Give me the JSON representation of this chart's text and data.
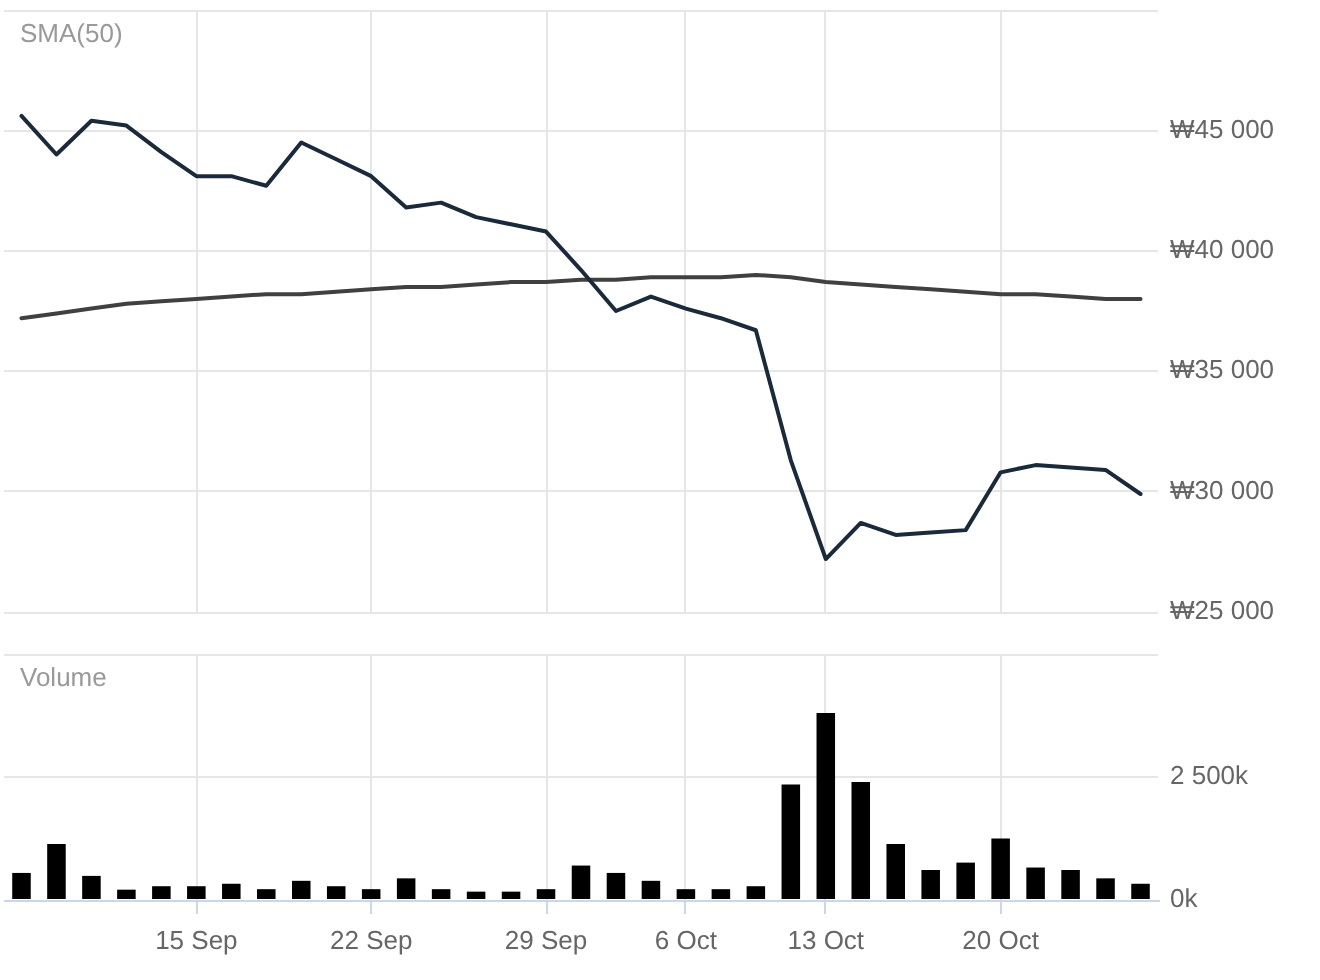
{
  "chart_data": [
    {
      "type": "line",
      "title": "SMA(50)",
      "categories": [
        null,
        null,
        null,
        null,
        null,
        null,
        null,
        null,
        null,
        null,
        null,
        null,
        null,
        null,
        null,
        null,
        null,
        null,
        null,
        null,
        null,
        null,
        null,
        null,
        null,
        null,
        null,
        null,
        null,
        null,
        null,
        null,
        null
      ],
      "series": [
        {
          "color": "#1b2a3b",
          "values": [
            45600,
            44000,
            45400,
            45200,
            44100,
            43100,
            43100,
            42700,
            44500,
            43800,
            43100,
            41800,
            42000,
            41400,
            41100,
            40800,
            39200,
            37500,
            38100,
            37600,
            37200,
            36700,
            31300,
            27200,
            28700,
            28200,
            28300,
            28400,
            30800,
            31100,
            31000,
            30900,
            29900
          ]
        },
        {
          "color": "#404040",
          "values": [
            37200,
            37400,
            37600,
            37800,
            37900,
            38000,
            38100,
            38200,
            38200,
            38300,
            38400,
            38500,
            38500,
            38600,
            38700,
            38700,
            38800,
            38800,
            38900,
            38900,
            38900,
            39000,
            38900,
            38700,
            38600,
            38500,
            38400,
            38300,
            38200,
            38200,
            38100,
            38000,
            38000
          ]
        }
      ],
      "ylim": [
        25000,
        50000
      ],
      "yticks": [
        {
          "value": 25000,
          "label": "₩25 000"
        },
        {
          "value": 30000,
          "label": "₩30 000"
        },
        {
          "value": 35000,
          "label": "₩35 000"
        },
        {
          "value": 40000,
          "label": "₩40 000"
        },
        {
          "value": 45000,
          "label": "₩45 000"
        },
        {
          "value": 50000,
          "label": null
        }
      ],
      "grid": true,
      "tick_labels": "y",
      "marker": "none"
    },
    {
      "type": "bar",
      "title": "Volume",
      "categories": [
        null,
        null,
        null,
        null,
        null,
        "15 Sep",
        null,
        null,
        null,
        null,
        "22 Sep",
        null,
        null,
        null,
        null,
        "29 Sep",
        null,
        null,
        null,
        "6 Oct",
        null,
        null,
        null,
        "13 Oct",
        null,
        null,
        null,
        null,
        "20 Oct",
        null,
        null,
        null,
        null
      ],
      "values": [
        550,
        1140,
        490,
        210,
        280,
        280,
        330,
        220,
        390,
        280,
        220,
        440,
        220,
        170,
        170,
        220,
        700,
        550,
        390,
        220,
        220,
        280,
        2350,
        3800,
        2400,
        1140,
        610,
        760,
        1250,
        660,
        610,
        440,
        330
      ],
      "color": "#000000",
      "ylim": [
        0,
        5000
      ],
      "yticks": [
        {
          "value": 0,
          "label": "0k"
        },
        {
          "value": 2500,
          "label": "2 500k"
        },
        {
          "value": 5000,
          "label": null
        }
      ],
      "grid": true
    }
  ]
}
